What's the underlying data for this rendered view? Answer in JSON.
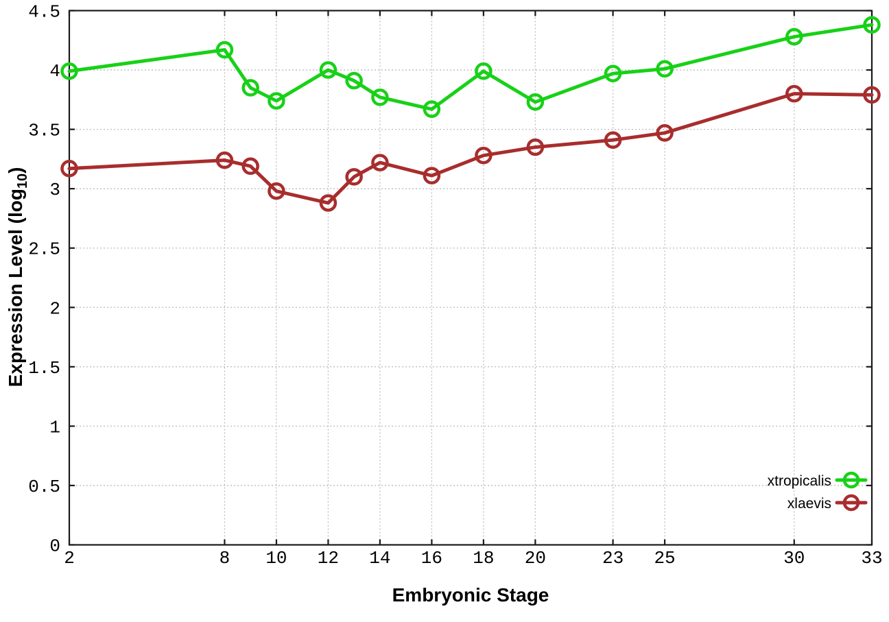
{
  "chart_data": {
    "type": "line",
    "title": "",
    "xlabel": "Embryonic Stage",
    "ylabel": "Expression Level (log10)",
    "ylabel_parts": {
      "pre": "Expression Level (log",
      "sub": "10",
      "post": ")"
    },
    "xlim": [
      2,
      33
    ],
    "ylim": [
      0,
      4.5
    ],
    "grid": true,
    "legend_position": "bottom-right-inside",
    "x": [
      2,
      8,
      9,
      10,
      12,
      13,
      14,
      16,
      18,
      20,
      23,
      25,
      30,
      33
    ],
    "xticks": [
      2,
      8,
      10,
      12,
      14,
      16,
      18,
      20,
      23,
      25,
      30,
      33
    ],
    "xtick_labels": [
      "2",
      "8",
      "10",
      "12",
      "14",
      "16",
      "18",
      "20",
      "23",
      "25",
      "30",
      "33"
    ],
    "yticks": [
      0,
      0.5,
      1,
      1.5,
      2,
      2.5,
      3,
      3.5,
      4,
      4.5
    ],
    "ytick_labels": [
      "0",
      "0.5",
      "1",
      "1.5",
      "2",
      "2.5",
      "3",
      "3.5",
      "4",
      "4.5"
    ],
    "colors": {
      "axis": "#1a1a1a",
      "grid": "#bcbcbc",
      "background": "#ffffff"
    },
    "series": [
      {
        "name": "xtropicalis",
        "color": "#17d117",
        "marker": "open-circle",
        "values": [
          3.99,
          4.17,
          3.85,
          3.74,
          4.0,
          3.91,
          3.77,
          3.67,
          3.99,
          3.73,
          3.97,
          4.01,
          4.28,
          4.38
        ]
      },
      {
        "name": "xlaevis",
        "color": "#a82d2d",
        "marker": "open-circle",
        "values": [
          3.17,
          3.24,
          3.19,
          2.98,
          2.88,
          3.1,
          3.22,
          3.11,
          3.28,
          3.35,
          3.41,
          3.47,
          3.8,
          3.79
        ]
      }
    ]
  }
}
